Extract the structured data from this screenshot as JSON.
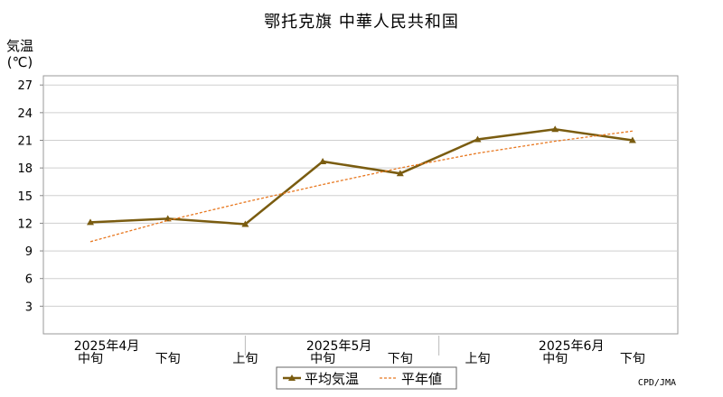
{
  "chart_data": {
    "type": "line",
    "title": "鄂托克旗 中華人民共和国",
    "ylabel": "気温",
    "yunit": "(℃)",
    "ylim": [
      0,
      28
    ],
    "yticks": [
      3,
      6,
      9,
      12,
      15,
      18,
      21,
      24,
      27
    ],
    "grid": true,
    "x": [
      "中旬",
      "下旬",
      "上旬",
      "中旬",
      "下旬",
      "上旬",
      "中旬",
      "下旬"
    ],
    "month_labels": [
      {
        "label": "2025年4月",
        "index": 0
      },
      {
        "label": "2025年5月",
        "index": 3
      },
      {
        "label": "2025年6月",
        "index": 6
      }
    ],
    "series": [
      {
        "name": "平均気温",
        "color": "#7a5c10",
        "style": "solid-triangle",
        "values": [
          12.1,
          12.5,
          11.9,
          18.7,
          17.4,
          21.1,
          22.2,
          21.0
        ]
      },
      {
        "name": "平年値",
        "color": "#e87820",
        "style": "dotted",
        "values": [
          10.0,
          12.3,
          14.3,
          16.2,
          18.0,
          19.6,
          20.9,
          22.0
        ]
      }
    ],
    "legend": "bottom-center",
    "credit": "CPD/JMA"
  }
}
